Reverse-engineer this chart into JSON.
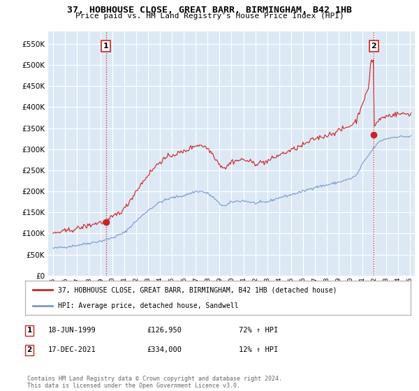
{
  "title": "37, HOBHOUSE CLOSE, GREAT BARR, BIRMINGHAM, B42 1HB",
  "subtitle": "Price paid vs. HM Land Registry's House Price Index (HPI)",
  "legend_line1": "37, HOBHOUSE CLOSE, GREAT BARR, BIRMINGHAM, B42 1HB (detached house)",
  "legend_line2": "HPI: Average price, detached house, Sandwell",
  "sale1_label": "1",
  "sale1_date": "18-JUN-1999",
  "sale1_price": "£126,950",
  "sale1_hpi": "72% ↑ HPI",
  "sale1_year": 1999.46,
  "sale1_value": 126950,
  "sale2_label": "2",
  "sale2_date": "17-DEC-2021",
  "sale2_price": "£334,000",
  "sale2_hpi": "12% ↑ HPI",
  "sale2_year": 2021.96,
  "sale2_value": 334000,
  "hpi_color": "#7799cc",
  "sale_color": "#cc2222",
  "background_color": "#ffffff",
  "plot_bg_color": "#dce9f5",
  "grid_color": "#ffffff",
  "footer_text": "Contains HM Land Registry data © Crown copyright and database right 2024.\nThis data is licensed under the Open Government Licence v3.0.",
  "ylim": [
    0,
    580000
  ],
  "yticks": [
    0,
    50000,
    100000,
    150000,
    200000,
    250000,
    300000,
    350000,
    400000,
    450000,
    500000,
    550000
  ],
  "xlim_start": 1994.6,
  "xlim_end": 2025.4
}
